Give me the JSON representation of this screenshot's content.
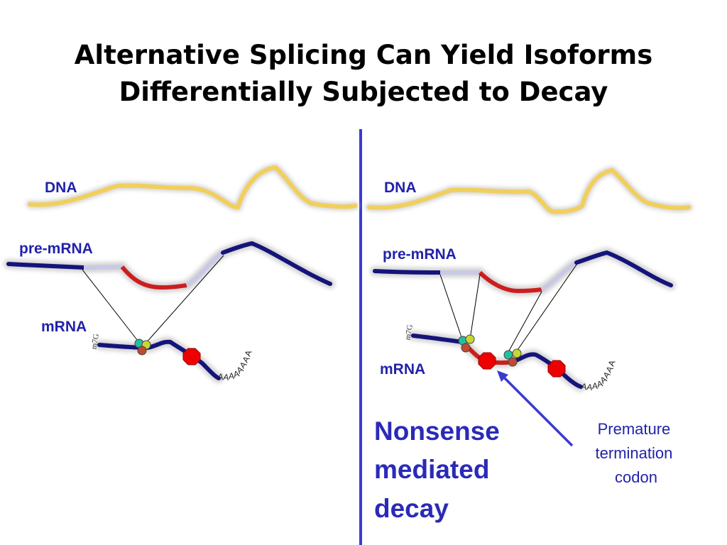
{
  "title": {
    "line1": "Alternative Splicing Can Yield Isoforms",
    "line2": "Differentially Subjected to Decay"
  },
  "left_panel": {
    "dna_label": "DNA",
    "premrna_label": "pre-mRNA",
    "mrna_label": "mRNA",
    "cap_glyph": "m7G",
    "polya_letters": [
      "A",
      "A",
      "A",
      "A",
      "A",
      "A",
      "A",
      "A"
    ]
  },
  "right_panel": {
    "dna_label": "DNA",
    "premrna_label": "pre-mRNA",
    "mrna_label": "mRNA",
    "cap_glyph": "m7G",
    "polya_letters": [
      "A",
      "A",
      "A",
      "A",
      "A",
      "A",
      "A",
      "A"
    ],
    "nmd_lines": [
      "Nonsense",
      "mediated",
      "decay"
    ],
    "ptc_lines": [
      "Premature",
      "termination",
      "codon"
    ]
  },
  "colors": {
    "label_blue": "#2222aa",
    "divider": "#3a3ad0",
    "dna": "#f2cf5a",
    "exon": "#14147a",
    "intron": "#c9c9e6",
    "alt_exon": "#cc1e1e",
    "stop_codon": "#ee0000",
    "ejc_teal": "#20c0a0",
    "ejc_yellow": "#c8d830",
    "ejc_rust": "#c04a30",
    "arrow": "#3a3ad0"
  }
}
